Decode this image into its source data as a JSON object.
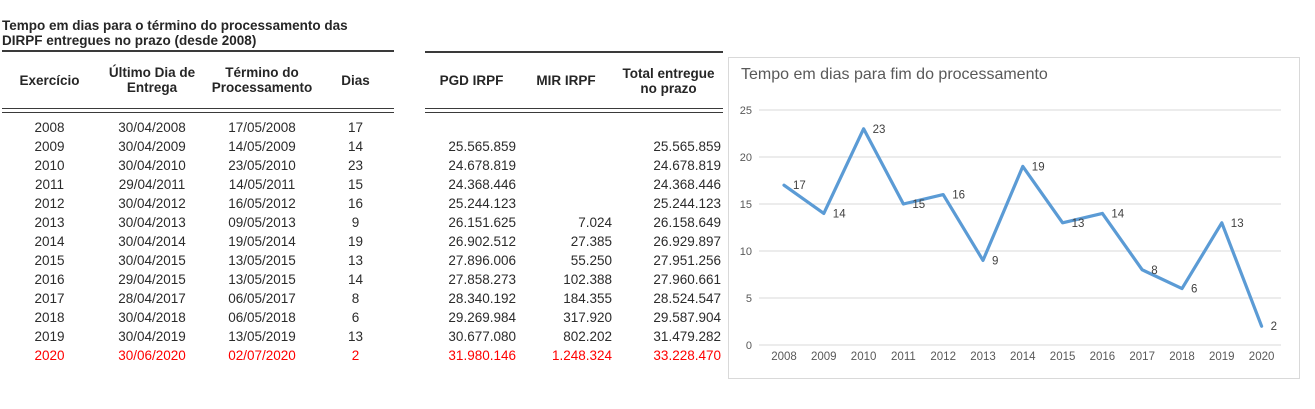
{
  "table1": {
    "title_line1": "Tempo em dias para o término do processamento das",
    "title_line2": "DIRPF entregues no prazo (desde 2008)",
    "columns": [
      "Exercício",
      "Último Dia de Entrega",
      "Término do Processamento",
      "Dias"
    ],
    "rows": [
      {
        "exercicio": "2008",
        "entrega": "30/04/2008",
        "termino": "17/05/2008",
        "dias": "17",
        "highlight": false
      },
      {
        "exercicio": "2009",
        "entrega": "30/04/2009",
        "termino": "14/05/2009",
        "dias": "14",
        "highlight": false
      },
      {
        "exercicio": "2010",
        "entrega": "30/04/2010",
        "termino": "23/05/2010",
        "dias": "23",
        "highlight": false
      },
      {
        "exercicio": "2011",
        "entrega": "29/04/2011",
        "termino": "14/05/2011",
        "dias": "15",
        "highlight": false
      },
      {
        "exercicio": "2012",
        "entrega": "30/04/2012",
        "termino": "16/05/2012",
        "dias": "16",
        "highlight": false
      },
      {
        "exercicio": "2013",
        "entrega": "30/04/2013",
        "termino": "09/05/2013",
        "dias": "9",
        "highlight": false
      },
      {
        "exercicio": "2014",
        "entrega": "30/04/2014",
        "termino": "19/05/2014",
        "dias": "19",
        "highlight": false
      },
      {
        "exercicio": "2015",
        "entrega": "30/04/2015",
        "termino": "13/05/2015",
        "dias": "13",
        "highlight": false
      },
      {
        "exercicio": "2016",
        "entrega": "29/04/2015",
        "termino": "13/05/2015",
        "dias": "14",
        "highlight": false
      },
      {
        "exercicio": "2017",
        "entrega": "28/04/2017",
        "termino": "06/05/2017",
        "dias": "8",
        "highlight": false
      },
      {
        "exercicio": "2018",
        "entrega": "30/04/2018",
        "termino": "06/05/2018",
        "dias": "6",
        "highlight": false
      },
      {
        "exercicio": "2019",
        "entrega": "30/04/2019",
        "termino": "13/05/2019",
        "dias": "13",
        "highlight": false
      },
      {
        "exercicio": "2020",
        "entrega": "30/06/2020",
        "termino": "02/07/2020",
        "dias": "2",
        "highlight": true
      }
    ]
  },
  "table2": {
    "columns": [
      "PGD IRPF",
      "MIR IRPF",
      "Total entregue no prazo"
    ],
    "rows": [
      {
        "pgd": "",
        "mir": "",
        "total": "",
        "highlight": false
      },
      {
        "pgd": "25.565.859",
        "mir": "",
        "total": "25.565.859",
        "highlight": false
      },
      {
        "pgd": "24.678.819",
        "mir": "",
        "total": "24.678.819",
        "highlight": false
      },
      {
        "pgd": "24.368.446",
        "mir": "",
        "total": "24.368.446",
        "highlight": false
      },
      {
        "pgd": "25.244.123",
        "mir": "",
        "total": "25.244.123",
        "highlight": false
      },
      {
        "pgd": "26.151.625",
        "mir": "7.024",
        "total": "26.158.649",
        "highlight": false
      },
      {
        "pgd": "26.902.512",
        "mir": "27.385",
        "total": "26.929.897",
        "highlight": false
      },
      {
        "pgd": "27.896.006",
        "mir": "55.250",
        "total": "27.951.256",
        "highlight": false
      },
      {
        "pgd": "27.858.273",
        "mir": "102.388",
        "total": "27.960.661",
        "highlight": false
      },
      {
        "pgd": "28.340.192",
        "mir": "184.355",
        "total": "28.524.547",
        "highlight": false
      },
      {
        "pgd": "29.269.984",
        "mir": "317.920",
        "total": "29.587.904",
        "highlight": false
      },
      {
        "pgd": "30.677.080",
        "mir": "802.202",
        "total": "31.479.282",
        "highlight": false
      },
      {
        "pgd": "31.980.146",
        "mir": "1.248.324",
        "total": "33.228.470",
        "highlight": true
      }
    ]
  },
  "chart_data": {
    "type": "line",
    "title": "Tempo em dias para fim do processamento",
    "categories": [
      "2008",
      "2009",
      "2010",
      "2011",
      "2012",
      "2013",
      "2014",
      "2015",
      "2016",
      "2017",
      "2018",
      "2019",
      "2020"
    ],
    "series": [
      {
        "name": "Dias",
        "values": [
          17,
          14,
          23,
          15,
          16,
          9,
          19,
          13,
          14,
          8,
          6,
          13,
          2
        ]
      }
    ],
    "ylim": [
      0,
      25
    ],
    "ytick_step": 5,
    "yticks": [
      "0",
      "5",
      "10",
      "15",
      "20",
      "25"
    ],
    "grid": true,
    "legend": "none",
    "data_labels": true
  },
  "colors": {
    "highlight_red": "#ff0000",
    "line_blue": "#5b9bd5",
    "gridline": "#d9d9d9",
    "axis_text": "#595959",
    "data_label_text": "#404040",
    "table_text": "#2b2b2b"
  }
}
